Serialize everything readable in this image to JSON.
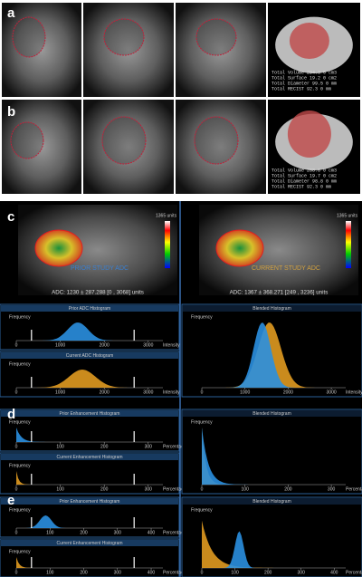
{
  "labels": [
    "a",
    "b",
    "c",
    "d",
    "e"
  ],
  "measurements_a": [
    "Total Volume   294.3   0 cm3",
    "Total Surface    19.2   0 cm2",
    "Total Diameter   99.5   0 mm",
    "Total RECIST    92.3   0 mm"
  ],
  "measurements_b": [
    "Total Volume   288.8   0 cm3",
    "Total Surface    19.7   0 cm2",
    "Total Diameter   98.8   0 mm",
    "Total RECIST    92.3   0 mm"
  ],
  "adc": {
    "prior": {
      "tag": "PRIOR STUDY ADC",
      "stat": "ADC: 1230 ± 287.288 [0 , 3068] units",
      "bar": "1365 units"
    },
    "current": {
      "tag": "CURRENT STUDY ADC",
      "stat": "ADC: 1367 ± 368.271 [249 , 3236] units",
      "bar": "1365 units"
    }
  },
  "histograms": [
    {
      "title": "Prior ADC Histogram",
      "ylabel": "Frequency",
      "xticks": [
        "0",
        "1000",
        "2000",
        "3000"
      ],
      "xlabel": "Intensity"
    },
    {
      "title": "Current ADC Histogram",
      "ylabel": "Frequency",
      "xticks": [
        "0",
        "1000",
        "2000",
        "3000"
      ],
      "xlabel": "Intensity"
    },
    {
      "title": "Blended Histogram",
      "ylabel": "Frequency",
      "xticks": [
        "0",
        "1000",
        "2000",
        "3000"
      ],
      "xlabel": "Intensity"
    },
    {
      "title": "Prior Enhancement Histogram",
      "ylabel": "Frequency",
      "xticks": [
        "0",
        "100",
        "200",
        "300"
      ],
      "xlabel": "Percentage"
    },
    {
      "title": "Current Enhancement Histogram",
      "ylabel": "Frequency",
      "xticks": [
        "0",
        "100",
        "200",
        "300"
      ],
      "xlabel": "Percentage"
    },
    {
      "title": "Blended Histogram",
      "ylabel": "Frequency",
      "xticks": [
        "0",
        "100",
        "200",
        "300"
      ],
      "xlabel": "Percentage"
    },
    {
      "title": "Prior Enhancement Histogram",
      "ylabel": "Frequency",
      "xticks": [
        "0",
        "100",
        "200",
        "300",
        "400"
      ],
      "xlabel": "Percentage"
    },
    {
      "title": "Current Enhancement Histogram",
      "ylabel": "Frequency",
      "xticks": [
        "0",
        "100",
        "200",
        "300",
        "400"
      ],
      "xlabel": "Percentage"
    },
    {
      "title": "Blended Histogram",
      "ylabel": "Frequency",
      "xticks": [
        "0",
        "100",
        "200",
        "300",
        "400"
      ],
      "xlabel": "Percentage"
    }
  ]
}
